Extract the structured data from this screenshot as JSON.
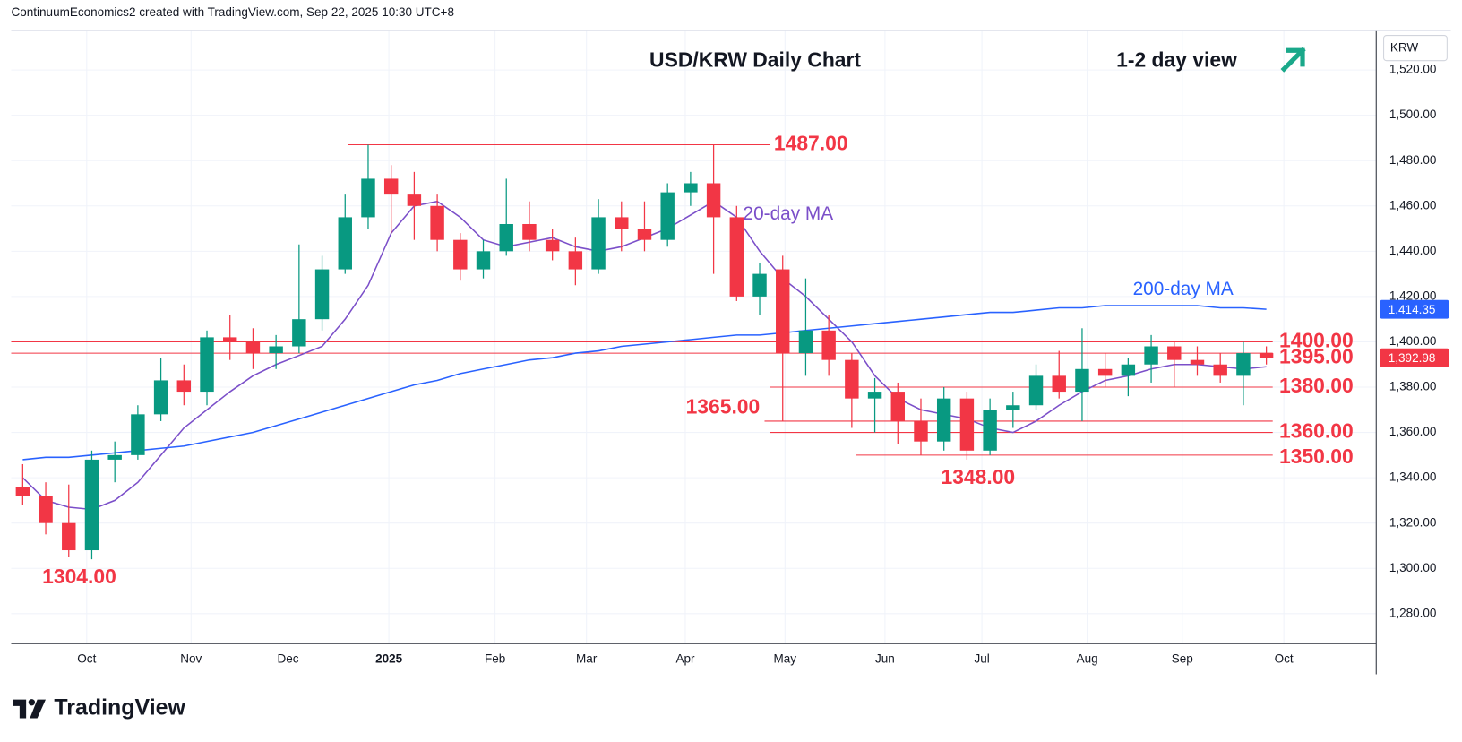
{
  "chart_data": {
    "type": "candlestick",
    "header": "ContinuumEconomics2 created with TradingView.com, Sep 22, 2025 10:30 UTC+8",
    "title": "USD/KRW Daily Chart",
    "subtitle": "1-2 day view",
    "currency": "KRW",
    "brand": "TradingView",
    "up_color": "#089981",
    "down_color": "#f23645",
    "grid": true,
    "categories": [
      null,
      null,
      null,
      null,
      null,
      null,
      null,
      null,
      null,
      null,
      null,
      null,
      null,
      null,
      null,
      null,
      null,
      null,
      null,
      null,
      null,
      null,
      null,
      null,
      null,
      null,
      null,
      null,
      null,
      null,
      null,
      null,
      null,
      null,
      null,
      null,
      null,
      null,
      null,
      null,
      null,
      null,
      null,
      null,
      null,
      null,
      null,
      null,
      null,
      null,
      null,
      null,
      null,
      null,
      null
    ],
    "open": [
      1336,
      1332,
      1320,
      1308,
      1348,
      1350,
      1368,
      1383,
      1378,
      1402,
      1400,
      1395,
      1398,
      1410,
      1432,
      1455,
      1472,
      1465,
      1460,
      1445,
      1432,
      1440,
      1452,
      1445,
      1440,
      1432,
      1455,
      1450,
      1445,
      1466,
      1470,
      1455,
      1420,
      1432,
      1395,
      1405,
      1392,
      1375,
      1378,
      1365,
      1356,
      1375,
      1352,
      1370,
      1372,
      1385,
      1378,
      1388,
      1385,
      1390,
      1398,
      1392,
      1390,
      1385,
      1395
    ],
    "high": [
      1346,
      1338,
      1337,
      1352,
      1356,
      1372,
      1393,
      1390,
      1405,
      1412,
      1406,
      1403,
      1443,
      1438,
      1465,
      1487,
      1478,
      1475,
      1465,
      1448,
      1445,
      1472,
      1462,
      1450,
      1446,
      1463,
      1462,
      1462,
      1470,
      1475,
      1487,
      1460,
      1435,
      1438,
      1428,
      1412,
      1395,
      1384,
      1382,
      1375,
      1380,
      1378,
      1375,
      1378,
      1390,
      1396,
      1406,
      1395,
      1393,
      1403,
      1400,
      1398,
      1395,
      1400,
      1398
    ],
    "low": [
      1328,
      1315,
      1305,
      1304,
      1338,
      1348,
      1365,
      1372,
      1372,
      1392,
      1388,
      1388,
      1395,
      1405,
      1430,
      1450,
      1448,
      1445,
      1440,
      1427,
      1428,
      1438,
      1440,
      1436,
      1425,
      1430,
      1440,
      1440,
      1442,
      1460,
      1430,
      1418,
      1412,
      1365,
      1385,
      1385,
      1362,
      1360,
      1355,
      1350,
      1352,
      1348,
      1350,
      1362,
      1370,
      1375,
      1365,
      1380,
      1376,
      1382,
      1380,
      1385,
      1382,
      1372,
      1390
    ],
    "close": [
      1332,
      1320,
      1308,
      1348,
      1350,
      1368,
      1383,
      1378,
      1402,
      1400,
      1395,
      1398,
      1410,
      1432,
      1455,
      1472,
      1465,
      1460,
      1445,
      1432,
      1440,
      1452,
      1445,
      1440,
      1432,
      1455,
      1450,
      1445,
      1466,
      1470,
      1455,
      1420,
      1430,
      1395,
      1405,
      1392,
      1375,
      1378,
      1365,
      1356,
      1375,
      1352,
      1370,
      1372,
      1385,
      1378,
      1388,
      1385,
      1390,
      1398,
      1392,
      1390,
      1385,
      1395,
      1392.98
    ],
    "series": [
      {
        "name": "20-day MA",
        "color": "#7b4fc9",
        "values": [
          1340,
          1330,
          1327,
          1326,
          1330,
          1338,
          1350,
          1362,
          1370,
          1378,
          1385,
          1390,
          1394,
          1398,
          1410,
          1425,
          1448,
          1460,
          1462,
          1455,
          1445,
          1442,
          1444,
          1446,
          1442,
          1440,
          1442,
          1446,
          1450,
          1456,
          1462,
          1455,
          1440,
          1428,
          1420,
          1410,
          1400,
          1385,
          1375,
          1370,
          1368,
          1366,
          1362,
          1360,
          1365,
          1372,
          1378,
          1383,
          1385,
          1388,
          1390,
          1390,
          1389,
          1388,
          1389
        ]
      },
      {
        "name": "200-day MA",
        "color": "#2962ff",
        "values": [
          1348,
          1349,
          1349,
          1350,
          1351,
          1352,
          1353,
          1354,
          1356,
          1358,
          1360,
          1363,
          1366,
          1369,
          1372,
          1375,
          1378,
          1381,
          1383,
          1386,
          1388,
          1390,
          1392,
          1393,
          1395,
          1396,
          1398,
          1399,
          1400,
          1401,
          1402,
          1403,
          1403,
          1404,
          1405,
          1406,
          1407,
          1408,
          1409,
          1410,
          1411,
          1412,
          1413,
          1413,
          1414,
          1415,
          1415,
          1416,
          1416,
          1416,
          1416,
          1416,
          1415,
          1415,
          1414.35
        ]
      }
    ],
    "levels": [
      {
        "value": 1487,
        "label": "1487.00"
      },
      {
        "value": 1400,
        "label": "1400.00"
      },
      {
        "value": 1395,
        "label": "1395.00"
      },
      {
        "value": 1380,
        "label": "1380.00"
      },
      {
        "value": 1365,
        "label": "1365.00"
      },
      {
        "value": 1360,
        "label": "1360.00"
      },
      {
        "value": 1350,
        "label": "1350.00"
      }
    ],
    "lows": [
      {
        "value": 1348,
        "label": "1348.00"
      },
      {
        "value": 1304,
        "label": "1304.00"
      }
    ],
    "price_tags": [
      {
        "value": 1414.35,
        "label": "1,414.35",
        "color": "#2962ff"
      },
      {
        "value": 1392.98,
        "label": "1,392.98",
        "color": "#f23645"
      }
    ],
    "xlim": [
      -0.5,
      58.77
    ],
    "xticks": [
      {
        "value": 2.78,
        "label": "Oct"
      },
      {
        "value": 7.31,
        "label": "Nov"
      },
      {
        "value": 11.52,
        "label": "Dec"
      },
      {
        "value": 15.9,
        "label": "2025"
      },
      {
        "value": 20.51,
        "label": "Feb"
      },
      {
        "value": 24.48,
        "label": "Mar"
      },
      {
        "value": 28.77,
        "label": "Apr"
      },
      {
        "value": 33.1,
        "label": "May"
      },
      {
        "value": 37.44,
        "label": "Jun"
      },
      {
        "value": 41.65,
        "label": "Jul"
      },
      {
        "value": 46.22,
        "label": "Aug"
      },
      {
        "value": 50.35,
        "label": "Sep"
      },
      {
        "value": 54.76,
        "label": "Oct"
      }
    ],
    "ylim": [
      1266.8,
      1537.3
    ],
    "yticks": [
      {
        "value": 1280,
        "label": "1,280.00"
      },
      {
        "value": 1300,
        "label": "1,300.00"
      },
      {
        "value": 1320,
        "label": "1,320.00"
      },
      {
        "value": 1340,
        "label": "1,340.00"
      },
      {
        "value": 1360,
        "label": "1,360.00"
      },
      {
        "value": 1380,
        "label": "1,380.00"
      },
      {
        "value": 1400,
        "label": "1,400.00"
      },
      {
        "value": 1420,
        "label": "1,420.00"
      },
      {
        "value": 1440,
        "label": "1,440.00"
      },
      {
        "value": 1460,
        "label": "1,460.00"
      },
      {
        "value": 1480,
        "label": "1,480.00"
      },
      {
        "value": 1500,
        "label": "1,500.00"
      },
      {
        "value": 1520,
        "label": "1,520.00"
      }
    ]
  }
}
